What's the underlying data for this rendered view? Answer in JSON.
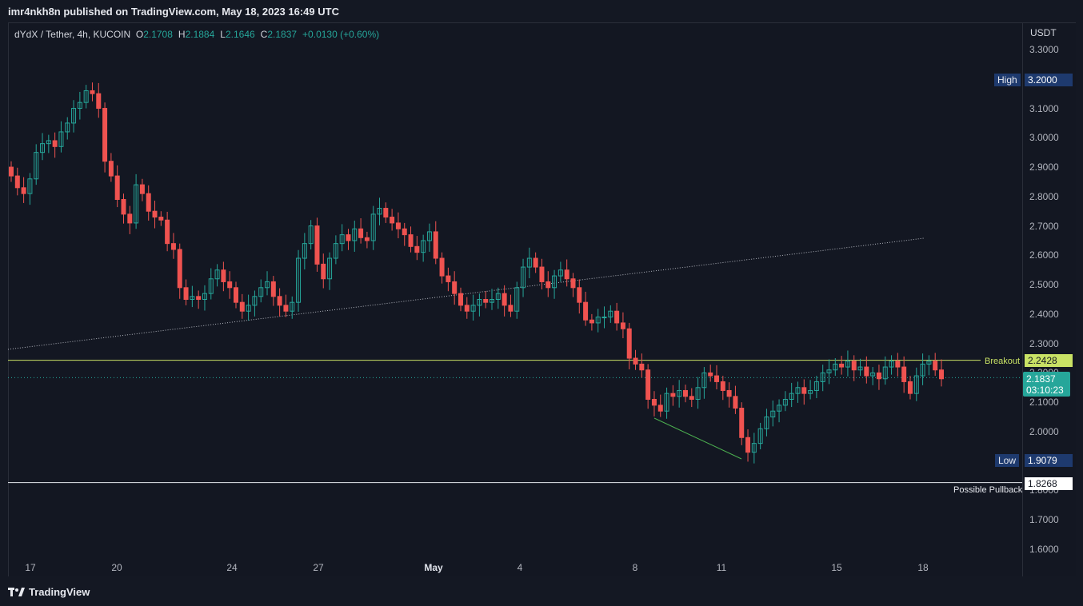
{
  "header": {
    "published": "imr4nkh8n published on TradingView.com, May 18, 2023 16:49 UTC"
  },
  "legend": {
    "symbol": "dYdX / Tether, 4h, KUCOIN",
    "o_label": "O",
    "o": "2.1708",
    "h_label": "H",
    "h": "2.1884",
    "l_label": "L",
    "l": "2.1646",
    "c_label": "C",
    "c": "2.1837",
    "change": "+0.0130 (+0.60%)"
  },
  "price_scale": {
    "currency": "USDT",
    "ticks": [
      "3.3000",
      "3.2000",
      "3.1000",
      "3.0000",
      "2.9000",
      "2.8000",
      "2.7000",
      "2.6000",
      "2.5000",
      "2.4000",
      "2.3000",
      "2.2000",
      "2.1000",
      "2.0000",
      "1.9000",
      "1.8000",
      "1.7000",
      "1.6000"
    ]
  },
  "time_scale": {
    "ticks": [
      "17",
      "20",
      "24",
      "27",
      "May",
      "4",
      "8",
      "11",
      "15",
      "18"
    ]
  },
  "markers": {
    "high_label": "High",
    "high_value": "3.2000",
    "breakout_label": "Breakout",
    "breakout_value": "2.2428",
    "current_value": "2.1837",
    "countdown": "03:10:23",
    "low_label": "Low",
    "low_value": "1.9079",
    "pullback_label": "Possible Pullback",
    "pullback_value": "1.8268"
  },
  "colors": {
    "up": "#26a69a",
    "down": "#ef5350",
    "breakout": "#c9e265",
    "trend": "#b2b5be",
    "wedge": "#4caf50"
  },
  "footer": {
    "brand": "TradingView",
    "logo_icon": "tradingview-logo-icon"
  },
  "chart_data": {
    "type": "candlestick",
    "symbol": "dYdX / Tether",
    "interval": "4h",
    "exchange": "KUCOIN",
    "ylim": [
      1.6,
      3.3
    ],
    "x_start": "Apr 16",
    "x_end": "May 18",
    "closes": [
      2.87,
      2.83,
      2.81,
      2.86,
      2.95,
      2.98,
      2.99,
      2.97,
      3.02,
      3.05,
      3.1,
      3.12,
      3.16,
      3.15,
      3.1,
      2.92,
      2.87,
      2.79,
      2.74,
      2.71,
      2.84,
      2.81,
      2.75,
      2.73,
      2.72,
      2.64,
      2.62,
      2.49,
      2.45,
      2.46,
      2.45,
      2.47,
      2.52,
      2.55,
      2.51,
      2.49,
      2.44,
      2.41,
      2.43,
      2.46,
      2.49,
      2.51,
      2.46,
      2.43,
      2.41,
      2.44,
      2.59,
      2.64,
      2.7,
      2.57,
      2.52,
      2.59,
      2.64,
      2.67,
      2.65,
      2.69,
      2.66,
      2.65,
      2.74,
      2.76,
      2.73,
      2.71,
      2.69,
      2.67,
      2.63,
      2.61,
      2.65,
      2.68,
      2.59,
      2.53,
      2.51,
      2.47,
      2.43,
      2.41,
      2.43,
      2.45,
      2.44,
      2.45,
      2.47,
      2.43,
      2.41,
      2.49,
      2.56,
      2.59,
      2.56,
      2.51,
      2.49,
      2.53,
      2.55,
      2.52,
      2.49,
      2.44,
      2.38,
      2.37,
      2.39,
      2.39,
      2.41,
      2.37,
      2.35,
      2.25,
      2.23,
      2.21,
      2.11,
      2.09,
      2.07,
      2.13,
      2.12,
      2.14,
      2.12,
      2.11,
      2.15,
      2.2,
      2.19,
      2.17,
      2.14,
      2.12,
      2.08,
      1.98,
      1.93,
      1.96,
      2.01,
      2.05,
      2.07,
      2.09,
      2.11,
      2.13,
      2.15,
      2.13,
      2.14,
      2.17,
      2.2,
      2.21,
      2.23,
      2.22,
      2.24,
      2.21,
      2.22,
      2.19,
      2.2,
      2.18,
      2.22,
      2.24,
      2.22,
      2.17,
      2.13,
      2.19,
      2.23,
      2.24,
      2.21,
      2.18
    ]
  }
}
